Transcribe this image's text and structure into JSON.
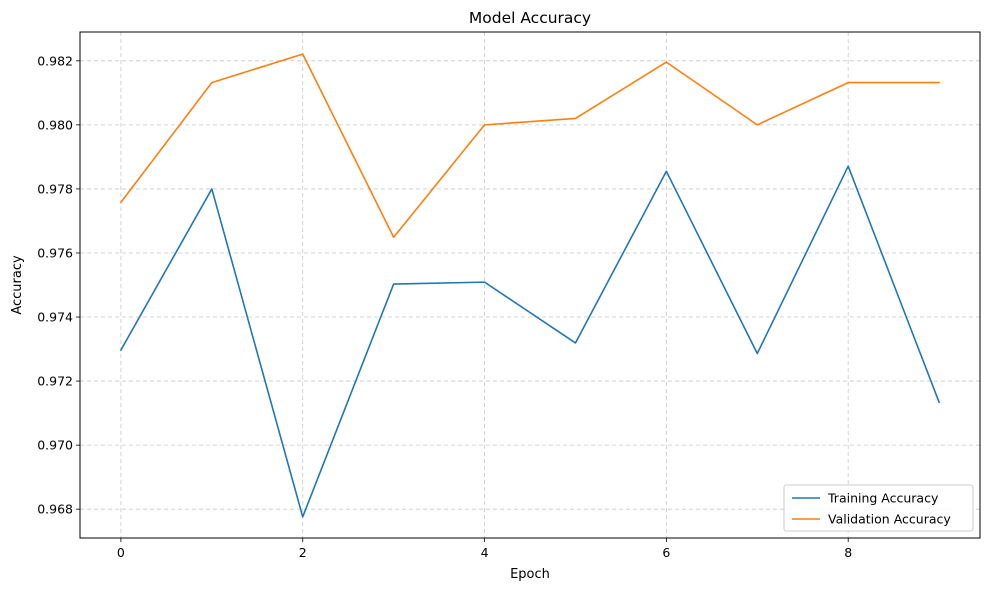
{
  "chart_data": {
    "type": "line",
    "title": "Model Accuracy",
    "xlabel": "Epoch",
    "ylabel": "Accuracy",
    "x": [
      0,
      1,
      2,
      3,
      4,
      5,
      6,
      7,
      8,
      9
    ],
    "xticks": [
      0,
      2,
      4,
      6,
      8
    ],
    "xtick_labels": [
      "0",
      "2",
      "4",
      "6",
      "8"
    ],
    "xlim": [
      -0.45,
      9.45
    ],
    "yticks": [
      0.968,
      0.97,
      0.972,
      0.974,
      0.976,
      0.978,
      0.98,
      0.982
    ],
    "ytick_labels": [
      "0.968",
      "0.970",
      "0.972",
      "0.974",
      "0.976",
      "0.978",
      "0.980",
      "0.982"
    ],
    "ylim": [
      0.9671,
      0.9829
    ],
    "grid": true,
    "legend_position": "lower-right",
    "series": [
      {
        "name": "Training Accuracy",
        "color": "#1f77b4",
        "values": [
          0.97297,
          0.978,
          0.96776,
          0.97503,
          0.97509,
          0.97319,
          0.97855,
          0.97286,
          0.97871,
          0.97134
        ]
      },
      {
        "name": "Validation Accuracy",
        "color": "#ff7f0e",
        "values": [
          0.97758,
          0.98132,
          0.98221,
          0.97649,
          0.98,
          0.9802,
          0.98196,
          0.98,
          0.98132,
          0.98132
        ]
      }
    ]
  }
}
